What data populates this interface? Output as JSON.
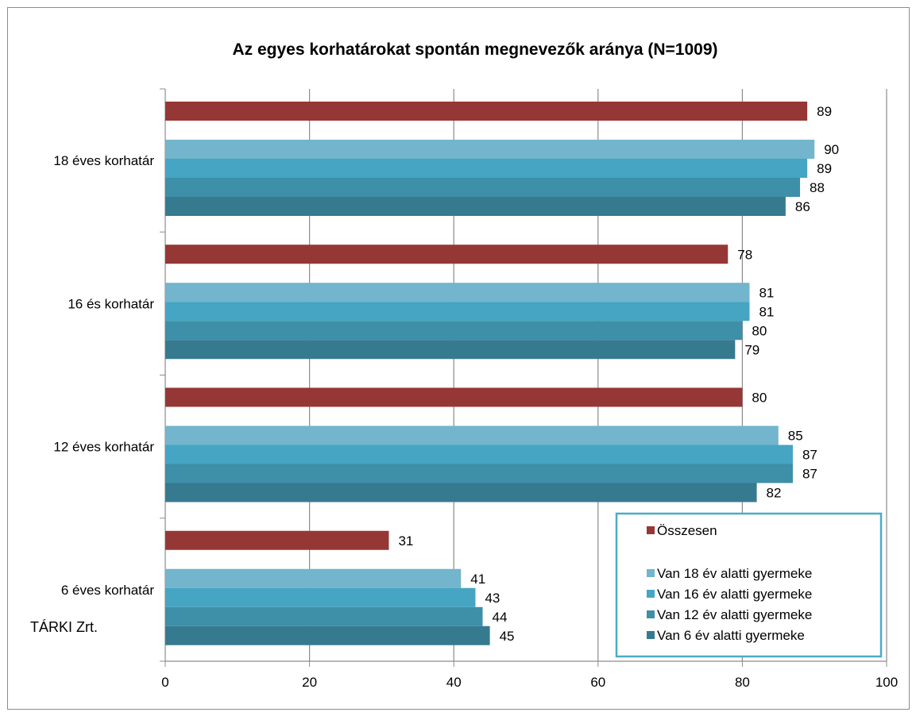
{
  "chart_data": {
    "type": "bar",
    "orientation": "horizontal",
    "title": "Az egyes korhatárokat spontán megnevezők aránya (N=1009)",
    "categories": [
      "18 éves korhatár",
      "16 és korhatár",
      "12 éves korhatár",
      "6 éves korhatár"
    ],
    "series": [
      {
        "name": "Összesen",
        "color": "#953735",
        "values": [
          89,
          78,
          80,
          31
        ]
      },
      {
        "name": "Van 18 év alatti gyermeke",
        "color": "#72b5cc",
        "values": [
          90,
          81,
          85,
          41
        ]
      },
      {
        "name": "Van 16 év alatti gyermeke",
        "color": "#45a5c2",
        "values": [
          89,
          81,
          87,
          43
        ]
      },
      {
        "name": "Van 12 év alatti gyermeke",
        "color": "#3e8fa8",
        "values": [
          88,
          80,
          87,
          44
        ]
      },
      {
        "name": "Van 6 év alatti gyermeke",
        "color": "#367a90",
        "values": [
          86,
          79,
          82,
          45
        ]
      }
    ],
    "xlim": [
      0,
      100
    ],
    "xticks": [
      0,
      20,
      40,
      60,
      80,
      100
    ],
    "grid": true,
    "legend_position": "bottom-right",
    "legend_border_color": "#4bacc6",
    "credit": "TÁRKI Zrt."
  }
}
